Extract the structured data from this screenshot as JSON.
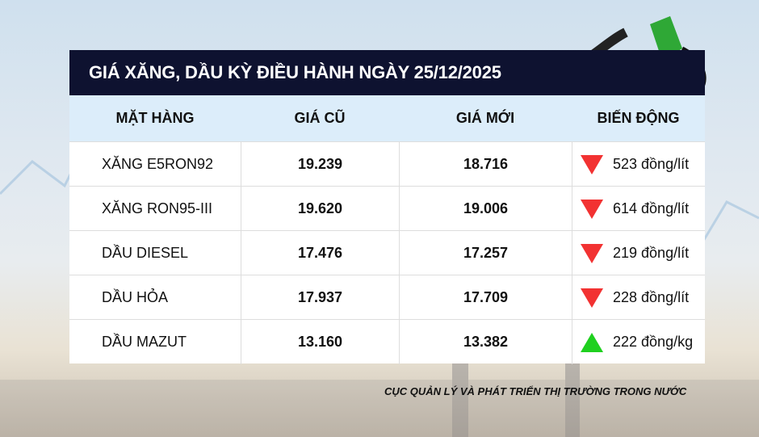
{
  "title": "GIÁ XĂNG, DẦU KỲ ĐIỀU HÀNH NGÀY 25/12/2025",
  "columns": [
    "MẶT HÀNG",
    "GIÁ CŨ",
    "GIÁ MỚI",
    "BIẾN ĐỘNG"
  ],
  "rows": [
    {
      "item": "XĂNG E5RON92",
      "old": "19.239",
      "new": "18.716",
      "change": "523 đồng/lít",
      "direction": "down"
    },
    {
      "item": "XĂNG RON95-III",
      "old": "19.620",
      "new": "19.006",
      "change": "614 đồng/lít",
      "direction": "down"
    },
    {
      "item": "DẦU DIESEL",
      "old": "17.476",
      "new": "17.257",
      "change": "219 đồng/lít",
      "direction": "down"
    },
    {
      "item": "DẦU HỎA",
      "old": "17.937",
      "new": "17.709",
      "change": "228 đồng/lít",
      "direction": "down"
    },
    {
      "item": "DẦU MAZUT",
      "old": "13.160",
      "new": "13.382",
      "change": "222 đồng/kg",
      "direction": "up"
    }
  ],
  "colors": {
    "down": "#f23232",
    "up": "#1fd01f",
    "title_bg": "#0e1230",
    "header_bg": "#dcedfa"
  },
  "footer": "CỤC QUẢN LÝ VÀ PHÁT TRIỂN THỊ TRƯỜNG TRONG NƯỚC"
}
